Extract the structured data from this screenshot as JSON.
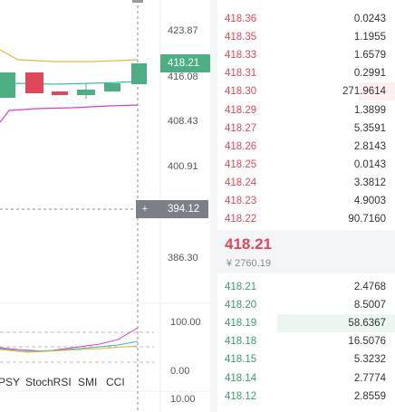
{
  "chart": {
    "price_axis": [
      "423.87",
      "416.08",
      "408.43",
      "400.91",
      "386.30"
    ],
    "last_price_tag": "418.21",
    "crosshair_price": "394.12",
    "indicator_axis": [
      "100.00",
      "0.00",
      "10.00"
    ],
    "indicator_tabs": [
      "PSY",
      "StochRSI",
      "SMI",
      "CCI"
    ]
  },
  "order_book": {
    "asks": [
      {
        "price": "418.36",
        "amount": "0.0243"
      },
      {
        "price": "418.35",
        "amount": "1.1955"
      },
      {
        "price": "418.33",
        "amount": "1.6579"
      },
      {
        "price": "418.31",
        "amount": "0.2991"
      },
      {
        "price": "418.30",
        "amount": "271.9614"
      },
      {
        "price": "418.29",
        "amount": "1.3899"
      },
      {
        "price": "418.27",
        "amount": "5.3591"
      },
      {
        "price": "418.26",
        "amount": "2.8143"
      },
      {
        "price": "418.25",
        "amount": "0.0143"
      },
      {
        "price": "418.24",
        "amount": "3.3812"
      },
      {
        "price": "418.23",
        "amount": "4.9003"
      },
      {
        "price": "418.22",
        "amount": "90.7160"
      }
    ],
    "last_price": "418.21",
    "last_price_cny": "¥ 2760.19",
    "bids": [
      {
        "price": "418.21",
        "amount": "2.4768"
      },
      {
        "price": "418.20",
        "amount": "8.5007"
      },
      {
        "price": "418.19",
        "amount": "58.6367"
      },
      {
        "price": "418.18",
        "amount": "16.5076"
      },
      {
        "price": "418.15",
        "amount": "5.3232"
      },
      {
        "price": "418.14",
        "amount": "2.7774"
      },
      {
        "price": "418.12",
        "amount": "2.8559"
      }
    ]
  }
}
